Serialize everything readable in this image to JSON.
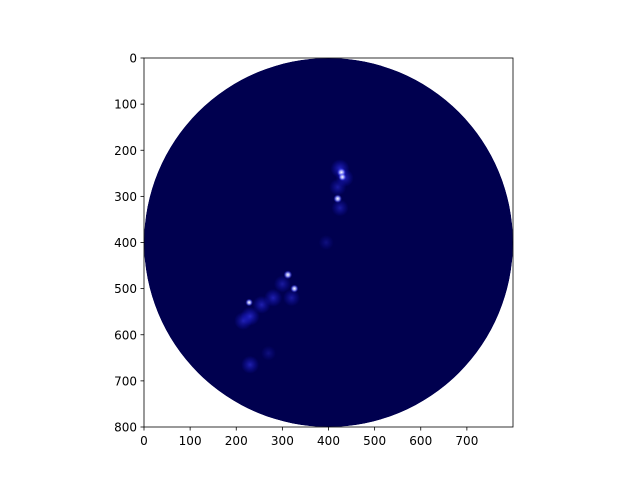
{
  "chart_data": {
    "type": "heatmap",
    "title": "",
    "xlabel": "",
    "ylabel": "",
    "xlim": [
      0,
      800
    ],
    "ylim": [
      800,
      0
    ],
    "x_ticks": [
      0,
      100,
      200,
      300,
      400,
      500,
      600,
      700
    ],
    "x_tick_labels": [
      "0",
      "100",
      "200",
      "300",
      "400",
      "500",
      "600",
      "700"
    ],
    "y_ticks": [
      0,
      100,
      200,
      300,
      400,
      500,
      600,
      700,
      800
    ],
    "y_tick_labels": [
      "0",
      "100",
      "200",
      "300",
      "400",
      "500",
      "600",
      "700",
      "800"
    ],
    "grid": false,
    "colormap": "dark blue to white",
    "colors": {
      "background_value": "#00004f",
      "outside_disk": "#ffffff",
      "frame": "#000000"
    },
    "disk": {
      "center": [
        400,
        400
      ],
      "radius": 400
    },
    "bright_spots": [
      {
        "x": 428,
        "y": 248,
        "intensity": 1.0
      },
      {
        "x": 430,
        "y": 258,
        "intensity": 0.8
      },
      {
        "x": 420,
        "y": 305,
        "intensity": 0.9
      },
      {
        "x": 312,
        "y": 470,
        "intensity": 0.9
      },
      {
        "x": 326,
        "y": 500,
        "intensity": 0.8
      },
      {
        "x": 228,
        "y": 530,
        "intensity": 0.7
      }
    ],
    "faint_regions": [
      {
        "x": 425,
        "y": 240,
        "intensity": 0.35
      },
      {
        "x": 435,
        "y": 260,
        "intensity": 0.3
      },
      {
        "x": 420,
        "y": 280,
        "intensity": 0.25
      },
      {
        "x": 425,
        "y": 325,
        "intensity": 0.25
      },
      {
        "x": 395,
        "y": 400,
        "intensity": 0.15
      },
      {
        "x": 300,
        "y": 490,
        "intensity": 0.25
      },
      {
        "x": 280,
        "y": 520,
        "intensity": 0.3
      },
      {
        "x": 255,
        "y": 535,
        "intensity": 0.3
      },
      {
        "x": 230,
        "y": 560,
        "intensity": 0.35
      },
      {
        "x": 215,
        "y": 570,
        "intensity": 0.3
      },
      {
        "x": 320,
        "y": 520,
        "intensity": 0.25
      },
      {
        "x": 230,
        "y": 665,
        "intensity": 0.3
      },
      {
        "x": 270,
        "y": 640,
        "intensity": 0.15
      }
    ]
  }
}
